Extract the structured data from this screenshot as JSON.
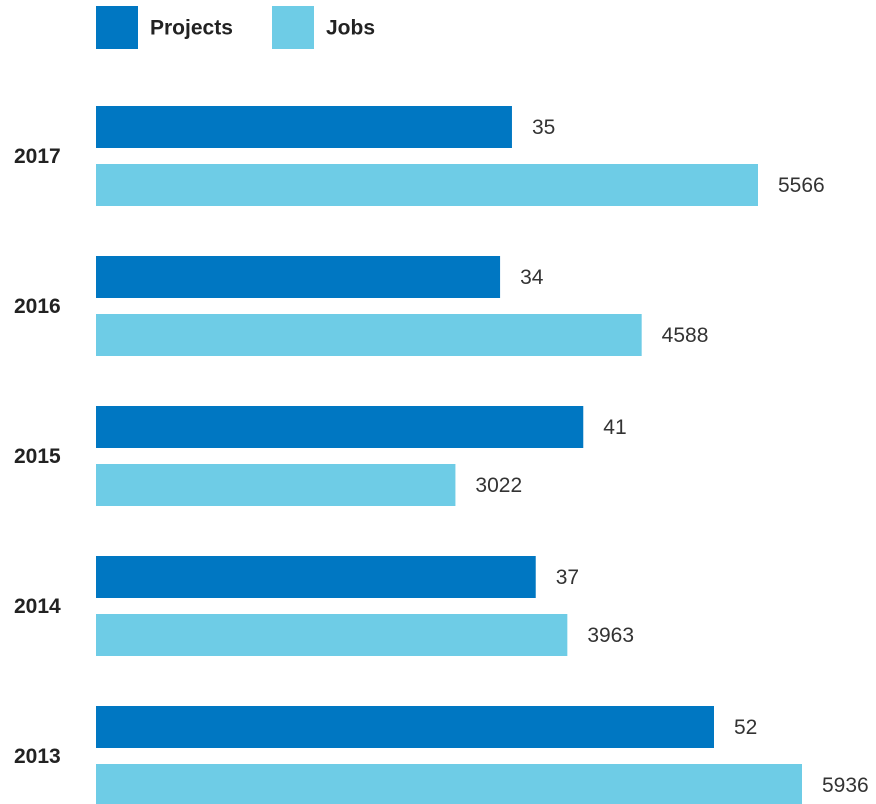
{
  "chart_data": {
    "type": "bar",
    "orientation": "horizontal",
    "categories": [
      "2017",
      "2016",
      "2015",
      "2014",
      "2013"
    ],
    "series": [
      {
        "name": "Projects",
        "color": "#0077C2",
        "values": [
          35,
          34,
          41,
          37,
          52
        ]
      },
      {
        "name": "Jobs",
        "color": "#6ECCE6",
        "values": [
          5566,
          4588,
          3022,
          3963,
          5936
        ]
      }
    ],
    "title": "",
    "xlabel": "",
    "ylabel": "",
    "grid": false,
    "legend_position": "top-left",
    "data_labels": true
  }
}
